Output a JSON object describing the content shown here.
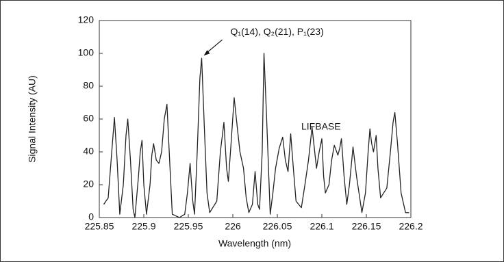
{
  "chart_data": {
    "type": "line",
    "x_label": "Wavelength (nm)",
    "y_label": "Signal Intensity (AU)",
    "annotations": [
      {
        "text": "Q₁(14), Q₂(21), P₁(23)",
        "x": 225.965,
        "y": 97
      },
      {
        "text": "LIFBASE",
        "x": 226.1,
        "y": 55
      }
    ],
    "xlim": [
      225.85,
      226.2
    ],
    "xticks": [
      225.85,
      225.9,
      225.95,
      226,
      226.05,
      226.1,
      226.15,
      226.2
    ],
    "ylim": [
      0,
      120
    ],
    "yticks": [
      0,
      20,
      40,
      60,
      80,
      100,
      120
    ],
    "series": [
      {
        "color": "#222222",
        "x": [
          225.855,
          225.86,
          225.864,
          225.867,
          225.87,
          225.873,
          225.877,
          225.88,
          225.882,
          225.885,
          225.888,
          225.89,
          225.894,
          225.896,
          225.898,
          225.9,
          225.903,
          225.907,
          225.909,
          225.911,
          225.914,
          225.917,
          225.92,
          225.923,
          225.926,
          225.929,
          225.932,
          225.94,
          225.946,
          225.949,
          225.952,
          225.955,
          225.957,
          225.96,
          225.963,
          225.965,
          225.968,
          225.971,
          225.974,
          225.982,
          225.986,
          225.99,
          225.993,
          225.995,
          225.998,
          226.0015,
          226.005,
          226.008,
          226.012,
          226.015,
          226.018,
          226.022,
          226.025,
          226.028,
          226.03,
          226.033,
          226.035,
          226.038,
          226.042,
          226.045,
          226.048,
          226.052,
          226.056,
          226.059,
          226.062,
          226.065,
          226.068,
          226.071,
          226.077,
          226.081,
          226.085,
          226.089,
          226.092,
          226.094,
          226.097,
          226.1,
          226.102,
          226.104,
          226.108,
          226.111,
          226.114,
          226.118,
          226.12,
          226.122,
          226.125,
          226.128,
          226.131,
          226.135,
          226.139,
          226.145,
          226.149,
          226.152,
          226.154,
          226.156,
          226.158,
          226.161,
          226.163,
          226.166,
          226.173,
          226.177,
          226.18,
          226.182,
          226.185,
          226.189,
          226.194,
          226.198
        ],
        "values": [
          8,
          12,
          40,
          61,
          35,
          2,
          20,
          50,
          60,
          35,
          5,
          0,
          25,
          40,
          47,
          20,
          2,
          20,
          38,
          45,
          35,
          33,
          40,
          60,
          69,
          35,
          2,
          0,
          2,
          15,
          33,
          10,
          2,
          40,
          85,
          97,
          55,
          15,
          3,
          10,
          40,
          58,
          30,
          22,
          45,
          73,
          55,
          40,
          30,
          12,
          3,
          8,
          28,
          8,
          5,
          40,
          100,
          60,
          2,
          15,
          30,
          42,
          49,
          35,
          28,
          51,
          30,
          10,
          6,
          20,
          35,
          55,
          40,
          30,
          40,
          48,
          25,
          15,
          20,
          35,
          44,
          38,
          42,
          48,
          25,
          8,
          20,
          43,
          25,
          3,
          15,
          40,
          54,
          45,
          40,
          50,
          30,
          12,
          18,
          40,
          58,
          64,
          45,
          15,
          3,
          3
        ]
      }
    ]
  }
}
